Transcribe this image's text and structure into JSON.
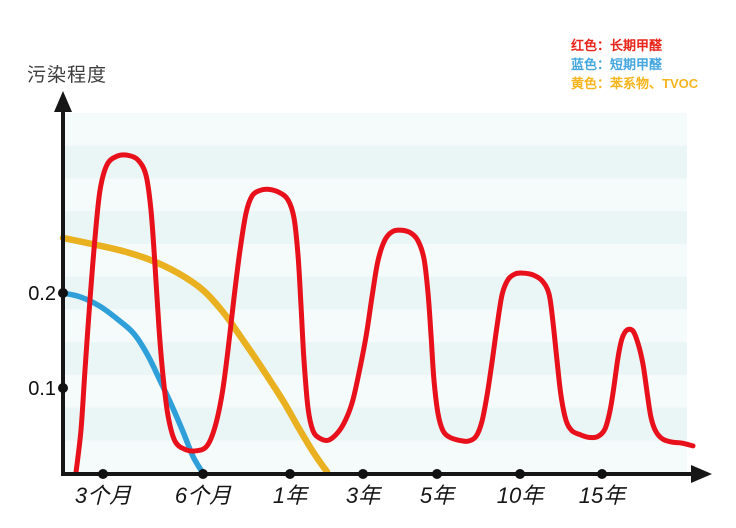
{
  "page": {
    "background": "#ffffff"
  },
  "legend": {
    "items": [
      {
        "label": "红色：长期甲醛",
        "color": "#e8251b"
      },
      {
        "label": "蓝色：短期甲醛",
        "color": "#45a7dd"
      },
      {
        "label": "黄色：苯系物、TVOC",
        "color": "#f6b51e"
      }
    ]
  },
  "colors": {
    "axis": "#161616",
    "tick_dot": "#111111",
    "stripe_light": "#f5fafb",
    "stripe_dark": "#eaf5f6",
    "red_curve": "#e8101a",
    "blue_curve": "#2f9fd9",
    "yellow_curve": "#e9b120"
  },
  "chart_data": {
    "type": "line",
    "title": "",
    "ylabel": "污染程度",
    "xlabel": "",
    "y_tick_labels": [
      "0.2",
      "0.1"
    ],
    "y_ticks": [
      0.2,
      0.1
    ],
    "x_tick_labels": [
      "3个月",
      "6个月",
      "1年",
      "3年",
      "5年",
      "10年",
      "15年"
    ],
    "ylim": [
      0,
      0.4
    ],
    "grid": "horizontal-striped-bands",
    "legend_position": "top-right",
    "x_axis_note": "non-linear qualitative time axis; point x stored as canvas px position, y as pollution value (0.1 per gridstep)",
    "red_peak_values": [
      0.35,
      0.31,
      0.27,
      0.22,
      0.16
    ],
    "series": [
      {
        "name": "苯系物、TVOC",
        "legend_color_name": "黄色",
        "color": "#e9b120",
        "width": 6.5,
        "points": [
          [
            63,
            0.258
          ],
          [
            90,
            0.252
          ],
          [
            120,
            0.245
          ],
          [
            150,
            0.235
          ],
          [
            178,
            0.221
          ],
          [
            203,
            0.203
          ],
          [
            223,
            0.18
          ],
          [
            240,
            0.155
          ],
          [
            255,
            0.132
          ],
          [
            270,
            0.108
          ],
          [
            284,
            0.085
          ],
          [
            297,
            0.061
          ],
          [
            310,
            0.038
          ],
          [
            320,
            0.022
          ],
          [
            327,
            0.012
          ]
        ]
      },
      {
        "name": "短期甲醛",
        "legend_color_name": "蓝色",
        "color": "#2f9fd9",
        "width": 5.5,
        "points": [
          [
            63,
            0.2
          ],
          [
            80,
            0.196
          ],
          [
            100,
            0.186
          ],
          [
            118,
            0.172
          ],
          [
            134,
            0.157
          ],
          [
            148,
            0.134
          ],
          [
            160,
            0.108
          ],
          [
            172,
            0.081
          ],
          [
            183,
            0.054
          ],
          [
            193,
            0.028
          ],
          [
            202,
            0.012
          ]
        ]
      },
      {
        "name": "长期甲醛",
        "legend_color_name": "红色",
        "color": "#e8101a",
        "width": 5,
        "points": [
          [
            76,
            0.011
          ],
          [
            81,
            0.056
          ],
          [
            85,
            0.119
          ],
          [
            90,
            0.193
          ],
          [
            95,
            0.258
          ],
          [
            100,
            0.308
          ],
          [
            107,
            0.335
          ],
          [
            117,
            0.344
          ],
          [
            128,
            0.345
          ],
          [
            138,
            0.34
          ],
          [
            146,
            0.324
          ],
          [
            151,
            0.287
          ],
          [
            155,
            0.229
          ],
          [
            159,
            0.163
          ],
          [
            163,
            0.113
          ],
          [
            168,
            0.071
          ],
          [
            175,
            0.044
          ],
          [
            186,
            0.035
          ],
          [
            197,
            0.034
          ],
          [
            207,
            0.039
          ],
          [
            215,
            0.059
          ],
          [
            222,
            0.093
          ],
          [
            228,
            0.14
          ],
          [
            234,
            0.195
          ],
          [
            240,
            0.245
          ],
          [
            246,
            0.284
          ],
          [
            252,
            0.302
          ],
          [
            260,
            0.308
          ],
          [
            269,
            0.309
          ],
          [
            279,
            0.306
          ],
          [
            288,
            0.298
          ],
          [
            294,
            0.279
          ],
          [
            298,
            0.24
          ],
          [
            301,
            0.187
          ],
          [
            304,
            0.129
          ],
          [
            308,
            0.079
          ],
          [
            313,
            0.055
          ],
          [
            320,
            0.047
          ],
          [
            328,
            0.045
          ],
          [
            336,
            0.051
          ],
          [
            344,
            0.063
          ],
          [
            352,
            0.084
          ],
          [
            359,
            0.116
          ],
          [
            366,
            0.154
          ],
          [
            372,
            0.196
          ],
          [
            378,
            0.234
          ],
          [
            385,
            0.256
          ],
          [
            393,
            0.265
          ],
          [
            402,
            0.266
          ],
          [
            411,
            0.263
          ],
          [
            418,
            0.255
          ],
          [
            424,
            0.236
          ],
          [
            428,
            0.2
          ],
          [
            431,
            0.156
          ],
          [
            434,
            0.108
          ],
          [
            438,
            0.073
          ],
          [
            443,
            0.055
          ],
          [
            450,
            0.048
          ],
          [
            459,
            0.045
          ],
          [
            468,
            0.044
          ],
          [
            476,
            0.049
          ],
          [
            482,
            0.065
          ],
          [
            487,
            0.092
          ],
          [
            492,
            0.127
          ],
          [
            497,
            0.165
          ],
          [
            502,
            0.198
          ],
          [
            508,
            0.214
          ],
          [
            515,
            0.22
          ],
          [
            523,
            0.221
          ],
          [
            533,
            0.219
          ],
          [
            542,
            0.213
          ],
          [
            549,
            0.199
          ],
          [
            553,
            0.169
          ],
          [
            557,
            0.129
          ],
          [
            561,
            0.092
          ],
          [
            566,
            0.066
          ],
          [
            572,
            0.055
          ],
          [
            580,
            0.051
          ],
          [
            589,
            0.048
          ],
          [
            598,
            0.049
          ],
          [
            605,
            0.057
          ],
          [
            610,
            0.076
          ],
          [
            614,
            0.102
          ],
          [
            618,
            0.132
          ],
          [
            622,
            0.152
          ],
          [
            627,
            0.161
          ],
          [
            633,
            0.16
          ],
          [
            638,
            0.147
          ],
          [
            643,
            0.125
          ],
          [
            647,
            0.096
          ],
          [
            651,
            0.069
          ],
          [
            656,
            0.054
          ],
          [
            663,
            0.046
          ],
          [
            672,
            0.043
          ],
          [
            682,
            0.042
          ],
          [
            693,
            0.039
          ]
        ]
      }
    ]
  }
}
